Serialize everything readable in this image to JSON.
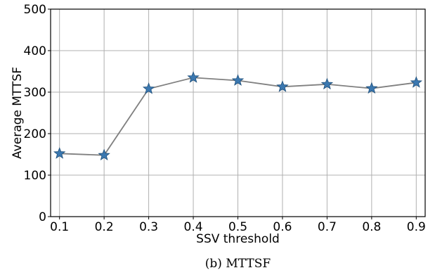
{
  "chart_data": {
    "type": "line",
    "caption": "(b) MTTSF",
    "xlabel": "SSV threshold",
    "ylabel": "Average MTTSF",
    "x": [
      0.1,
      0.2,
      0.3,
      0.4,
      0.5,
      0.6,
      0.7,
      0.8,
      0.9
    ],
    "x_tick_labels": [
      "0.1",
      "0.2",
      "0.3",
      "0.4",
      "0.5",
      "0.6",
      "0.7",
      "0.8",
      "0.9"
    ],
    "y_ticks": [
      0,
      100,
      200,
      300,
      400,
      500
    ],
    "y_tick_labels": [
      "0",
      "100",
      "200",
      "300",
      "400",
      "500"
    ],
    "ylim": [
      0,
      500
    ],
    "xlim": [
      0.08,
      0.92
    ],
    "grid": true,
    "series": [
      {
        "values": [
          152,
          148,
          308,
          335,
          328,
          313,
          319,
          309,
          323
        ],
        "line_color": "#808080",
        "marker": "star",
        "marker_color": "#3b78b0"
      }
    ]
  }
}
